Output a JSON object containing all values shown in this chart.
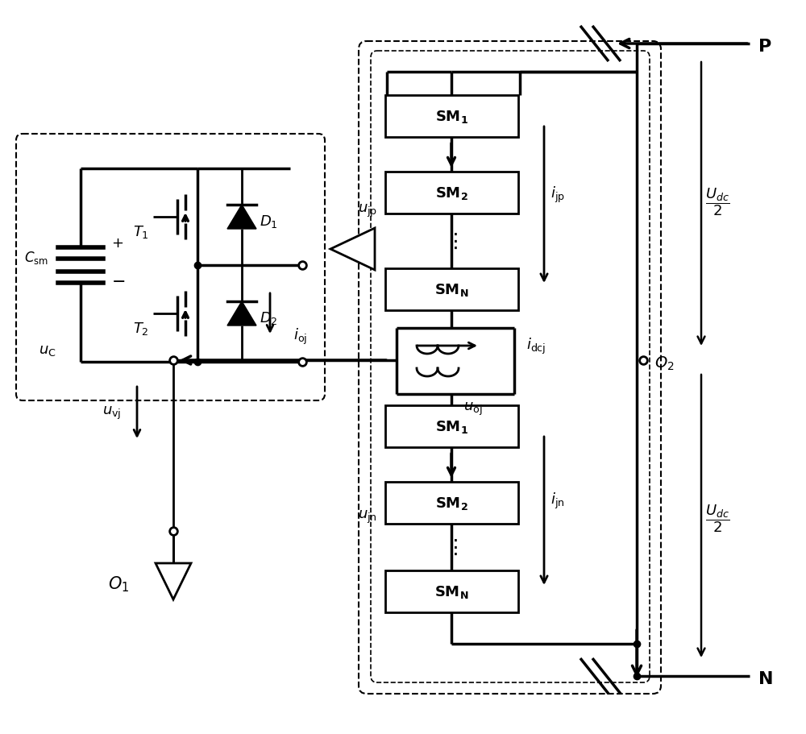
{
  "bg_color": "#ffffff",
  "figsize": [
    10.0,
    9.12
  ],
  "dpi": 100,
  "lw": 2.0,
  "lw_thick": 2.5,
  "fs": 13
}
